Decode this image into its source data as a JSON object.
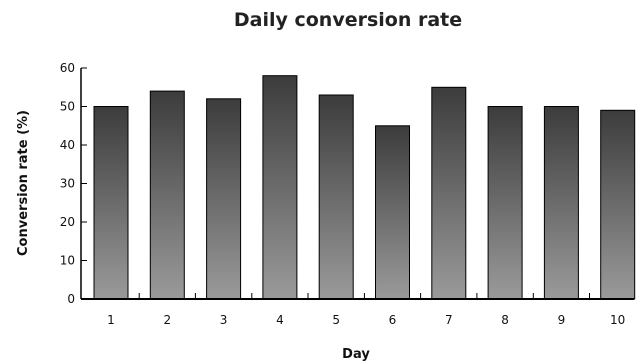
{
  "chart_data": {
    "type": "bar",
    "title": "Daily conversion rate",
    "xlabel": "Day",
    "ylabel": "Conversion rate (%)",
    "categories": [
      "1",
      "2",
      "3",
      "4",
      "5",
      "6",
      "7",
      "8",
      "9",
      "10"
    ],
    "values": [
      50,
      54,
      52,
      58,
      53,
      45,
      55,
      50,
      50,
      49
    ],
    "ylim": [
      0,
      60
    ],
    "yticks": [
      0,
      10,
      20,
      30,
      40,
      50,
      60
    ],
    "grid": false,
    "legend": "none",
    "colors": {
      "bar_top": "#3c3c3c",
      "bar_bottom": "#9a9a9a",
      "axis": "#000000"
    }
  }
}
